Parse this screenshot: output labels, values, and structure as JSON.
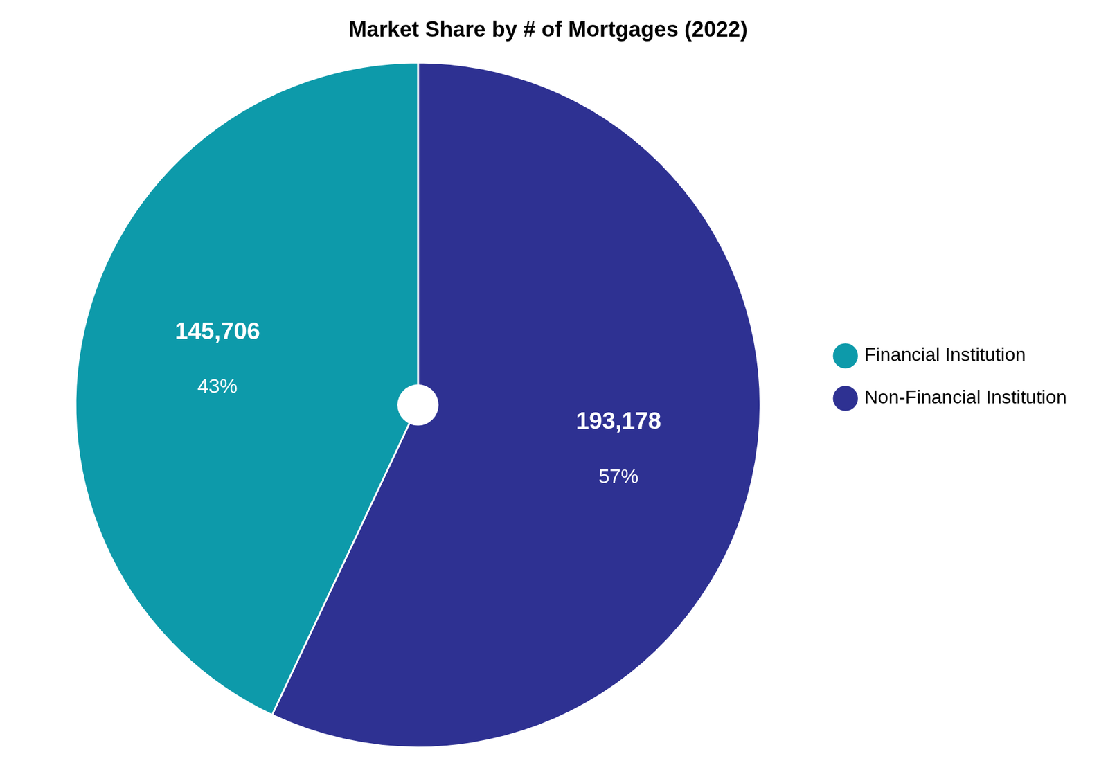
{
  "chart_data": {
    "type": "pie",
    "title": "Market Share by # of Mortgages (2022)",
    "categories": [
      "Non-Financial Institution",
      "Financial Institution"
    ],
    "values": [
      193178,
      145706
    ],
    "value_labels": [
      "193,178",
      "145,706"
    ],
    "shares": [
      57,
      43
    ],
    "share_labels": [
      "57%",
      "43%"
    ],
    "colors": [
      "#2e3192",
      "#0d9aaa"
    ],
    "data_labels": true,
    "legend": "right"
  }
}
